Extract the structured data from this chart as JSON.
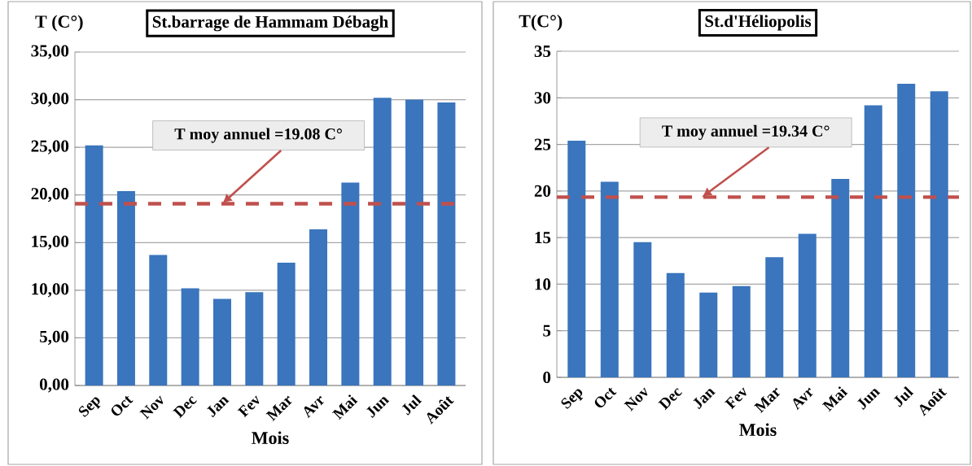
{
  "chart_data": [
    {
      "type": "bar",
      "title": "St.barrage de Hammam Débagh",
      "xlabel": "Mois",
      "ylabel": "T (C°)",
      "categories": [
        "Sep",
        "Oct",
        "Nov",
        "Dec",
        "Jan",
        "Fev",
        "Mar",
        "Avr",
        "Mai",
        "Jun",
        "Jul",
        "Août"
      ],
      "values": [
        25.2,
        20.4,
        13.7,
        10.2,
        9.1,
        9.8,
        12.9,
        16.4,
        21.3,
        30.2,
        30.0,
        29.7
      ],
      "color": "#3a75bd",
      "ylim": [
        0,
        35
      ],
      "yticks": [
        {
          "value": 0,
          "label": "0,00"
        },
        {
          "value": 5,
          "label": "5,00"
        },
        {
          "value": 10,
          "label": "10,00"
        },
        {
          "value": 15,
          "label": "15,00"
        },
        {
          "value": 20,
          "label": "20,00"
        },
        {
          "value": 25,
          "label": "25,00"
        },
        {
          "value": 30,
          "label": "30,00"
        },
        {
          "value": 35,
          "label": "35,00"
        }
      ],
      "grid": "y",
      "ref_lines": [
        {
          "axis": "y",
          "value": 19.08,
          "label": "T moy  annuel =19.08 C°",
          "color": "#c0504d",
          "line_style": "dashed"
        }
      ]
    },
    {
      "type": "bar",
      "title": "St.d'Héliopolis",
      "xlabel": "Mois",
      "ylabel": "T(C°)",
      "categories": [
        "Sep",
        "Oct",
        "Nov",
        "Dec",
        "Jan",
        "Fev",
        "Mar",
        "Avr",
        "Mai",
        "Jun",
        "Jul",
        "Août"
      ],
      "values": [
        25.4,
        21.0,
        14.5,
        11.2,
        9.1,
        9.8,
        12.9,
        15.4,
        21.3,
        29.2,
        31.5,
        30.7
      ],
      "color": "#3a75bd",
      "ylim": [
        0,
        35
      ],
      "yticks": [
        0,
        5,
        10,
        15,
        20,
        25,
        30,
        35
      ],
      "grid": "y",
      "ref_lines": [
        {
          "axis": "y",
          "value": 19.34,
          "label": "T moy  annuel =19.34 C°",
          "color": "#c0504d",
          "line_style": "dashed"
        }
      ]
    }
  ]
}
